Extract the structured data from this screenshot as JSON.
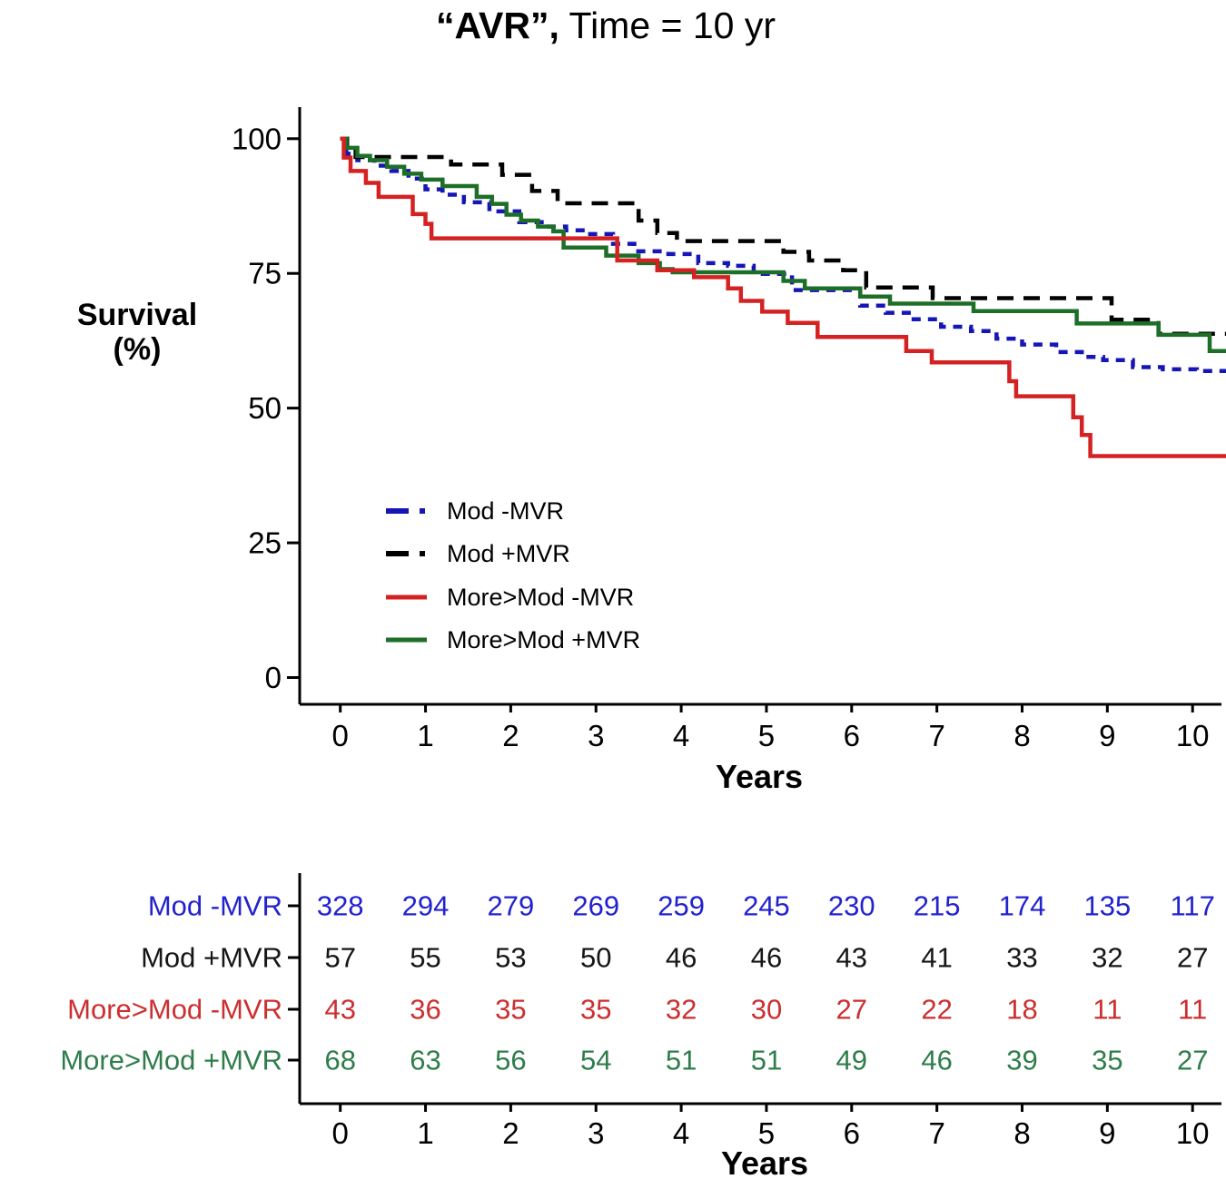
{
  "title": {
    "bold_part": "“AVR”,",
    "regular_part": " Time = 10 yr"
  },
  "chart_data": {
    "type": "line",
    "subtype": "kaplan-meier-step-curves",
    "title": "“AVR”, Time = 10 yr",
    "xlabel": "Years",
    "ylabel": "Survival (%)",
    "ylabel_lines": [
      "Survival",
      "(%)"
    ],
    "xlim": [
      0,
      10.45
    ],
    "ylim": [
      0,
      100
    ],
    "x_ticks": [
      0,
      1,
      2,
      3,
      4,
      5,
      6,
      7,
      8,
      9,
      10
    ],
    "y_ticks": [
      0,
      25,
      50,
      75,
      100
    ],
    "grid": false,
    "legend_position": "inside-left-middle",
    "series": [
      {
        "name": "Mod -MVR",
        "color": "#1616b6",
        "style": "dashed-short",
        "steps": [
          [
            0,
            100
          ],
          [
            0.07,
            97.2
          ],
          [
            0.2,
            96.0
          ],
          [
            0.4,
            95.0
          ],
          [
            0.6,
            94.0
          ],
          [
            0.8,
            92.6
          ],
          [
            1.0,
            90.6
          ],
          [
            1.2,
            89.6
          ],
          [
            1.45,
            88.2
          ],
          [
            1.75,
            86.5
          ],
          [
            2.1,
            84.5
          ],
          [
            2.4,
            83.7
          ],
          [
            2.65,
            83.0
          ],
          [
            2.9,
            82.3
          ],
          [
            3.2,
            80.5
          ],
          [
            3.45,
            79.1
          ],
          [
            3.85,
            78.6
          ],
          [
            4.2,
            76.9
          ],
          [
            4.55,
            76.4
          ],
          [
            4.85,
            74.9
          ],
          [
            5.3,
            71.9
          ],
          [
            6.1,
            69.0
          ],
          [
            6.4,
            67.7
          ],
          [
            6.7,
            66.5
          ],
          [
            7.05,
            65.1
          ],
          [
            7.4,
            64.3
          ],
          [
            7.7,
            62.9
          ],
          [
            8.0,
            61.8
          ],
          [
            8.4,
            60.4
          ],
          [
            8.7,
            59.5
          ],
          [
            8.95,
            58.9
          ],
          [
            9.3,
            57.6
          ],
          [
            9.65,
            57.2
          ],
          [
            10.05,
            56.9
          ]
        ]
      },
      {
        "name": "Mod +MVR",
        "color": "#000000",
        "style": "dashed-long",
        "steps": [
          [
            0,
            100
          ],
          [
            0.08,
            98.3
          ],
          [
            0.18,
            96.6
          ],
          [
            1.3,
            95.2
          ],
          [
            1.9,
            93.3
          ],
          [
            2.25,
            90.3
          ],
          [
            2.55,
            88.0
          ],
          [
            3.5,
            84.8
          ],
          [
            3.72,
            82.5
          ],
          [
            3.95,
            81.0
          ],
          [
            5.2,
            79.0
          ],
          [
            5.5,
            77.4
          ],
          [
            5.9,
            75.6
          ],
          [
            6.17,
            72.4
          ],
          [
            6.95,
            70.4
          ],
          [
            9.05,
            66.4
          ],
          [
            9.6,
            63.8
          ]
        ]
      },
      {
        "name": "More>Mod -MVR",
        "color": "#d42222",
        "style": "solid",
        "steps": [
          [
            0,
            100
          ],
          [
            0.04,
            96.5
          ],
          [
            0.12,
            94.0
          ],
          [
            0.3,
            91.8
          ],
          [
            0.45,
            89.2
          ],
          [
            0.85,
            86.0
          ],
          [
            1.0,
            84.2
          ],
          [
            1.07,
            81.5
          ],
          [
            3.25,
            77.4
          ],
          [
            3.72,
            75.6
          ],
          [
            4.15,
            74.3
          ],
          [
            4.55,
            72.2
          ],
          [
            4.7,
            69.9
          ],
          [
            4.95,
            67.9
          ],
          [
            5.25,
            65.8
          ],
          [
            5.6,
            63.2
          ],
          [
            6.64,
            60.6
          ],
          [
            6.94,
            58.5
          ],
          [
            7.85,
            55.0
          ],
          [
            7.93,
            52.2
          ],
          [
            8.6,
            48.3
          ],
          [
            8.7,
            45.0
          ],
          [
            8.8,
            41.1
          ]
        ]
      },
      {
        "name": "More>Mod +MVR",
        "color": "#1d6e27",
        "style": "solid",
        "steps": [
          [
            0,
            100
          ],
          [
            0.07,
            98.3
          ],
          [
            0.2,
            96.8
          ],
          [
            0.35,
            96.0
          ],
          [
            0.55,
            94.8
          ],
          [
            0.75,
            93.5
          ],
          [
            0.95,
            92.4
          ],
          [
            1.2,
            91.2
          ],
          [
            1.6,
            89.2
          ],
          [
            1.78,
            87.9
          ],
          [
            1.95,
            85.9
          ],
          [
            2.12,
            84.8
          ],
          [
            2.32,
            83.7
          ],
          [
            2.5,
            82.8
          ],
          [
            2.62,
            79.8
          ],
          [
            3.12,
            78.3
          ],
          [
            3.5,
            76.9
          ],
          [
            3.75,
            75.8
          ],
          [
            3.9,
            75.2
          ],
          [
            5.2,
            73.6
          ],
          [
            5.45,
            72.2
          ],
          [
            6.1,
            70.7
          ],
          [
            6.45,
            69.4
          ],
          [
            7.43,
            68.0
          ],
          [
            8.64,
            65.7
          ],
          [
            9.6,
            63.6
          ],
          [
            10.2,
            60.6
          ]
        ]
      }
    ],
    "risk_table": {
      "xlabel": "Years",
      "columns": [
        0,
        1,
        2,
        3,
        4,
        5,
        6,
        7,
        8,
        9,
        10
      ],
      "rows": [
        {
          "label": "Mod -MVR",
          "color": "#2222cf",
          "values": [
            328,
            294,
            279,
            269,
            259,
            245,
            230,
            215,
            174,
            135,
            117
          ]
        },
        {
          "label": "Mod +MVR",
          "color": "#161616",
          "values": [
            57,
            55,
            53,
            50,
            46,
            46,
            43,
            41,
            33,
            32,
            27
          ]
        },
        {
          "label": "More>Mod -MVR",
          "color": "#cc2f2f",
          "values": [
            43,
            36,
            35,
            35,
            32,
            30,
            27,
            22,
            18,
            11,
            11
          ]
        },
        {
          "label": "More>Mod +MVR",
          "color": "#2e7d4b",
          "values": [
            68,
            63,
            56,
            54,
            51,
            51,
            49,
            46,
            39,
            35,
            27
          ]
        }
      ]
    }
  }
}
